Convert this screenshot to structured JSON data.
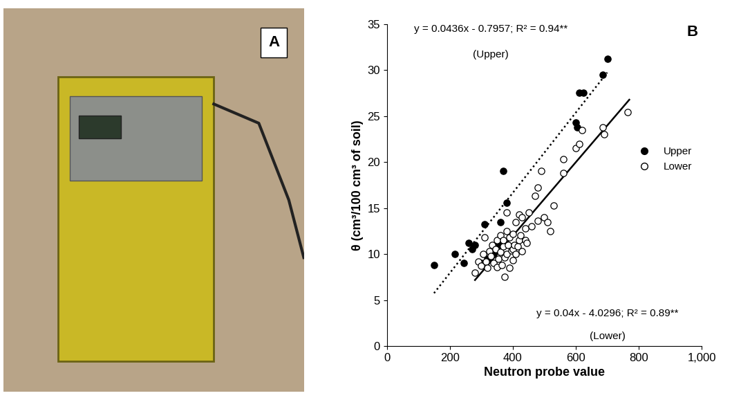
{
  "image_panel": {
    "label": "A"
  },
  "chart_data": {
    "type": "scatter",
    "panel_label": "B",
    "x_label": "Neutron probe value",
    "y_label": "θ (cm³/100 cm³ of soil)",
    "xlim": [
      0,
      1000
    ],
    "xticks": [
      0,
      200,
      400,
      600,
      800,
      {
        "value": 1000,
        "label": "1,000"
      }
    ],
    "ylim": [
      0,
      35
    ],
    "yticks": [
      0,
      5,
      10,
      15,
      20,
      25,
      30,
      35
    ],
    "grid": false,
    "legend": "center right",
    "series": [
      {
        "name": "Upper",
        "color": "#000000",
        "marker": "filled",
        "line_style": "dotted",
        "x": [
          150,
          215,
          245,
          260,
          270,
          280,
          300,
          310,
          320,
          330,
          340,
          350,
          355,
          360,
          370,
          380,
          600,
          605,
          610,
          625,
          685,
          700
        ],
        "values": [
          8.8,
          10,
          9,
          11.2,
          10.5,
          11,
          9,
          13.2,
          9.5,
          9.8,
          10,
          10.5,
          11,
          13.5,
          19,
          15.6,
          24.3,
          23.8,
          27.5,
          27.5,
          29.5,
          31.2
        ],
        "fit": {
          "slope": 0.0436,
          "intercept": -0.7957,
          "x": [
            150,
            700
          ]
        },
        "equation": "y = 0.0436x - 0.7957; R² = 0.94**",
        "fit_label": "(Upper)"
      },
      {
        "name": "Lower",
        "color": "#000000",
        "marker": "open",
        "line_style": "solid",
        "x": [
          280,
          290,
          300,
          305,
          310,
          315,
          320,
          325,
          330,
          335,
          340,
          345,
          350,
          350,
          355,
          360,
          360,
          365,
          370,
          370,
          375,
          375,
          380,
          380,
          380,
          385,
          390,
          390,
          395,
          400,
          400,
          400,
          405,
          410,
          410,
          415,
          420,
          420,
          425,
          430,
          430,
          440,
          440,
          445,
          450,
          460,
          470,
          480,
          480,
          490,
          500,
          510,
          520,
          530,
          560,
          560,
          600,
          610,
          620,
          685,
          690,
          765
        ],
        "values": [
          8,
          9.2,
          8.7,
          10,
          11.8,
          9.2,
          8.5,
          10.3,
          9.8,
          11,
          9,
          10.5,
          8.6,
          11.5,
          9.5,
          10.2,
          12,
          8.8,
          10.8,
          11.5,
          9.6,
          7.5,
          10,
          12.5,
          14.5,
          11,
          8.5,
          11.8,
          10.4,
          9.3,
          12.2,
          10.5,
          11,
          10,
          13.5,
          10.8,
          11.5,
          14.3,
          12,
          10.3,
          14,
          12.8,
          11.5,
          11.2,
          14.5,
          13,
          16.3,
          17.2,
          13.6,
          19,
          14,
          13.5,
          12.5,
          15.3,
          20.3,
          18.8,
          21.5,
          22,
          23.5,
          23.8,
          23,
          25.4
        ],
        "fit": {
          "slope": 0.04,
          "intercept": -4.0296,
          "x": [
            280,
            770
          ]
        },
        "equation": "y = 0.04x - 4.0296; R² = 0.89**",
        "fit_label": "(Lower)"
      }
    ]
  }
}
